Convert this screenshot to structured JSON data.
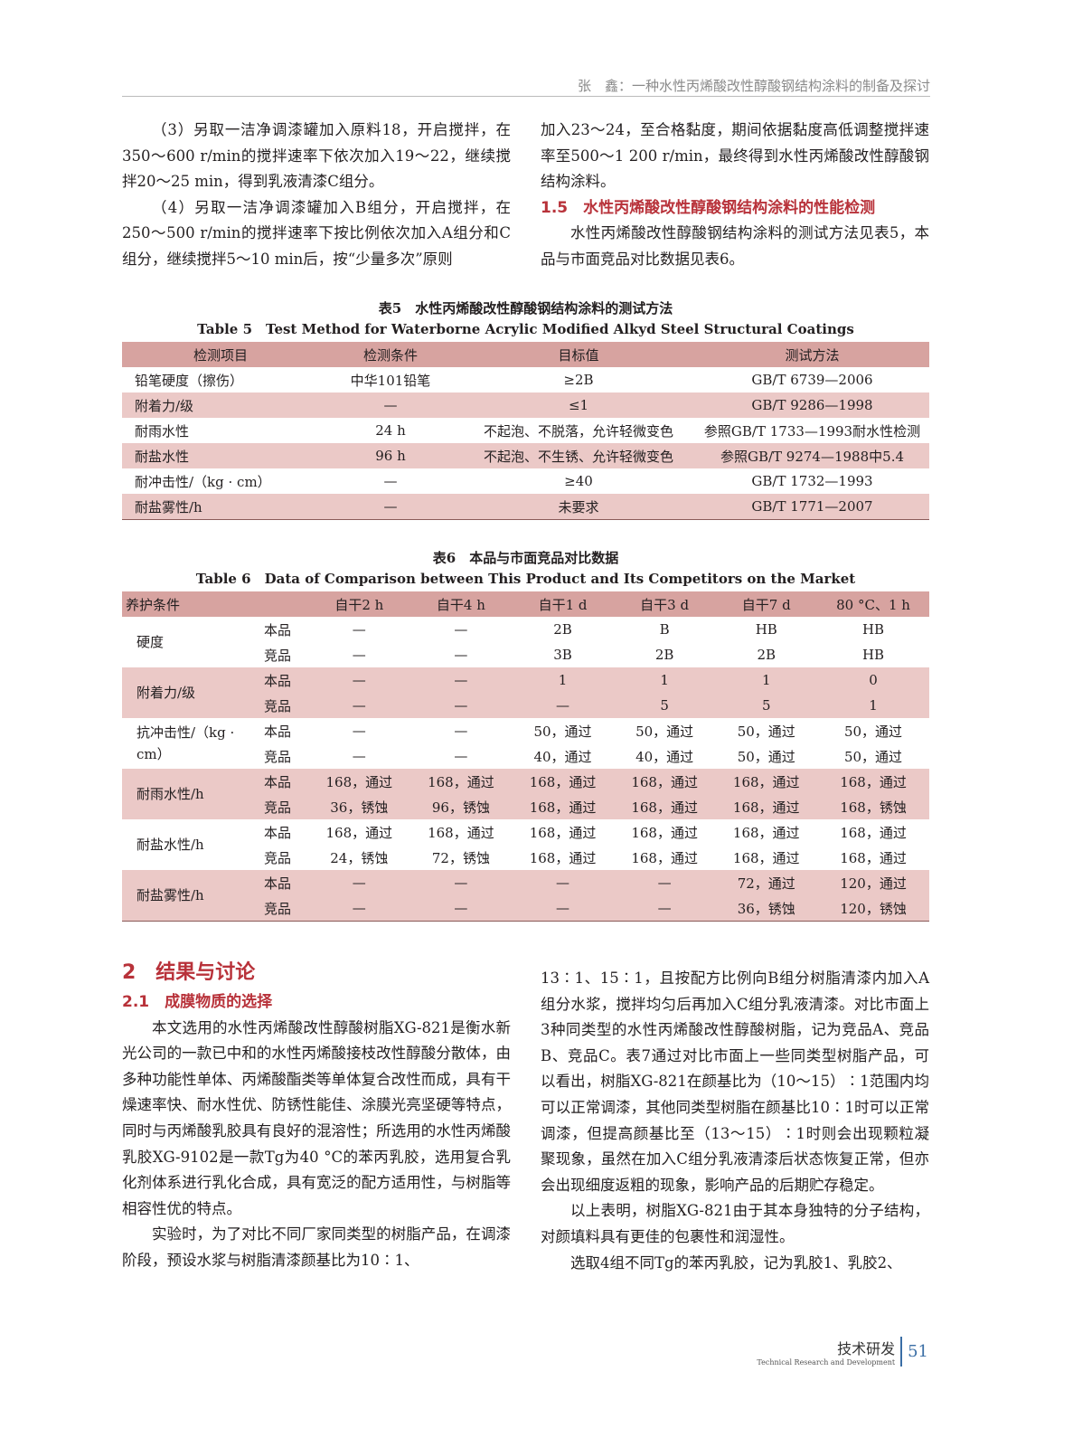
{
  "header": {
    "running_title": "张　鑫：一种水性丙烯酸改性醇酸钢结构涂料的制备及探讨"
  },
  "left_top": [
    "（3）另取一洁净调漆罐加入原料18，开启搅拌，在350～600 r/min的搅拌速率下依次加入19～22，继续搅拌20～25 min，得到乳液清漆C组分。",
    "（4）另取一洁净调漆罐加入B组分，开启搅拌，在250～500 r/min的搅拌速率下按比例依次加入A组分和C组分，继续搅拌5～10 min后，按“少量多次”原则"
  ],
  "right_top": {
    "cont": "加入23～24，至合格黏度，期间依据黏度高低调整搅拌速率至500～1 200 r/min，最终得到水性丙烯酸改性醇酸钢结构涂料。",
    "heading": "1.5　水性丙烯酸改性醇酸钢结构涂料的性能检测",
    "para": "水性丙烯酸改性醇酸钢结构涂料的测试方法见表5，本品与市面竞品对比数据见表6。"
  },
  "table5": {
    "caption_cn": "表5　水性丙烯酸改性醇酸钢结构涂料的测试方法",
    "caption_en": "Table 5　Test Method for Waterborne Acrylic Modified Alkyd Steel Structural Coatings",
    "headers": [
      "检测项目",
      "检测条件",
      "目标值",
      "测试方法"
    ],
    "rows": [
      [
        "铅笔硬度（擦伤）",
        "中华101铅笔",
        "≥2B",
        "GB/T 6739—2006"
      ],
      [
        "附着力/级",
        "—",
        "≤1",
        "GB/T 9286—1998"
      ],
      [
        "耐雨水性",
        "24 h",
        "不起泡、不脱落，允许轻微变色",
        "参照GB/T 1733—1993耐水性检测"
      ],
      [
        "耐盐水性",
        "96 h",
        "不起泡、不生锈、允许轻微变色",
        "参照GB/T 9274—1988中5.4"
      ],
      [
        "耐冲击性/（kg · cm）",
        "—",
        "≥40",
        "GB/T 1732—1993"
      ],
      [
        "耐盐雾性/h",
        "—",
        "未要求",
        "GB/T 1771—2007"
      ]
    ]
  },
  "table6": {
    "caption_cn": "表6　本品与市面竞品对比数据",
    "caption_en": "Table 6　Data of Comparison between This Product and Its Competitors on the Market",
    "headers": [
      "养护条件",
      "",
      "自干2 h",
      "自干4 h",
      "自干1 d",
      "自干3 d",
      "自干7 d",
      "80 °C、1 h"
    ],
    "groups": [
      {
        "name": "硬度",
        "rows": [
          [
            "本品",
            "—",
            "—",
            "2B",
            "B",
            "HB",
            "HB"
          ],
          [
            "竞品",
            "—",
            "—",
            "3B",
            "2B",
            "2B",
            "HB"
          ]
        ]
      },
      {
        "name": "附着力/级",
        "rows": [
          [
            "本品",
            "—",
            "—",
            "1",
            "1",
            "1",
            "0"
          ],
          [
            "竞品",
            "—",
            "—",
            "—",
            "5",
            "5",
            "1"
          ]
        ]
      },
      {
        "name": "抗冲击性/（kg · cm）",
        "rows": [
          [
            "本品",
            "—",
            "—",
            "50，通过",
            "50，通过",
            "50，通过",
            "50，通过"
          ],
          [
            "竞品",
            "—",
            "—",
            "40，通过",
            "40，通过",
            "50，通过",
            "50，通过"
          ]
        ]
      },
      {
        "name": "耐雨水性/h",
        "rows": [
          [
            "本品",
            "168，通过",
            "168，通过",
            "168，通过",
            "168，通过",
            "168，通过",
            "168，通过"
          ],
          [
            "竞品",
            "36，锈蚀",
            "96，锈蚀",
            "168，通过",
            "168，通过",
            "168，通过",
            "168，锈蚀"
          ]
        ]
      },
      {
        "name": "耐盐水性/h",
        "rows": [
          [
            "本品",
            "168，通过",
            "168，通过",
            "168，通过",
            "168，通过",
            "168，通过",
            "168，通过"
          ],
          [
            "竞品",
            "24，锈蚀",
            "72，锈蚀",
            "168，通过",
            "168，通过",
            "168，通过",
            "168，通过"
          ]
        ]
      },
      {
        "name": "耐盐雾性/h",
        "rows": [
          [
            "本品",
            "—",
            "—",
            "—",
            "—",
            "72，通过",
            "120，通过"
          ],
          [
            "竞品",
            "—",
            "—",
            "—",
            "—",
            "36，锈蚀",
            "120，锈蚀"
          ]
        ]
      }
    ]
  },
  "section2": {
    "heading": "2　结果与讨论",
    "sub": "2.1　成膜物质的选择",
    "p1": "本文选用的水性丙烯酸改性醇酸树脂XG-821是衡水新光公司的一款已中和的水性丙烯酸接枝改性醇酸分散体，由多种功能性单体、丙烯酸酯类等单体复合改性而成，具有干燥速率快、耐水性优、防锈性能佳、涂膜光亮坚硬等特点，同时与丙烯酸乳胶具有良好的混溶性；所选用的水性丙烯酸乳胶XG-9102是一款Tg为40 °C的苯丙乳胶，选用复合乳化剂体系进行乳化合成，具有宽泛的配方适用性，与树脂等相容性优的特点。",
    "p2": "实验时，为了对比不同厂家同类型的树脂产品，在调漆阶段，预设水浆与树脂清漆颜基比为10∶1、",
    "r1": "13∶1、15∶1，且按配方比例向B组分树脂清漆内加入A组分水浆，搅拌均匀后再加入C组分乳液清漆。对比市面上3种同类型的水性丙烯酸改性醇酸树脂，记为竞品A、竞品B、竞品C。表7通过对比市面上一些同类型树脂产品，可以看出，树脂XG-821在颜基比为（10～15）∶1范围内均可以正常调漆，其他同类型树脂在颜基比10∶1时可以正常调漆，但提高颜基比至（13～15）∶1时则会出现颗粒凝聚现象，虽然在加入C组分乳液清漆后状态恢复正常，但亦会出现细度返粗的现象，影响产品的后期贮存稳定。",
    "r2": "以上表明，树脂XG-821由于其本身独特的分子结构，对颜填料具有更佳的包裹性和润湿性。",
    "r3": "选取4组不同Tg的苯丙乳胶，记为乳胶1、乳胶2、"
  },
  "footer": {
    "section_cn": "技术研发",
    "section_en": "Technical Research and Development",
    "page": "51"
  }
}
